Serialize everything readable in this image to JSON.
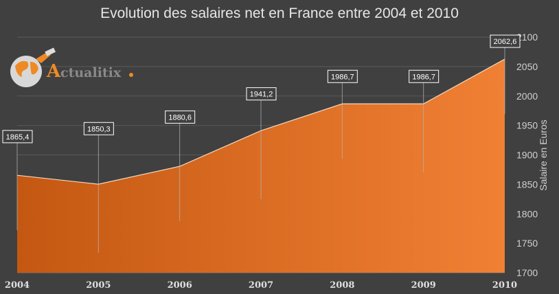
{
  "logo": {
    "text": "Actualitix"
  },
  "chart_data": {
    "type": "area",
    "title": "Evolution des salaires net en France entre 2004 et 2010",
    "categories": [
      "2004",
      "2005",
      "2006",
      "2007",
      "2008",
      "2009",
      "2010"
    ],
    "values": [
      1865.4,
      1850.3,
      1880.6,
      1941.2,
      1986.7,
      1986.7,
      2062.6
    ],
    "data_labels": [
      "1865,4",
      "1850,3",
      "1880,6",
      "1941,2",
      "1986,7",
      "1986,7",
      "2062,6"
    ],
    "ylabel": "Salaire en Euros",
    "ylim": [
      1700,
      2100
    ],
    "yticks": [
      1700,
      1750,
      1800,
      1850,
      1900,
      1950,
      2000,
      2050,
      2100
    ],
    "y_axis_position": "right",
    "grid": true,
    "colors": {
      "start": "#c45812",
      "end": "#f08034"
    }
  }
}
